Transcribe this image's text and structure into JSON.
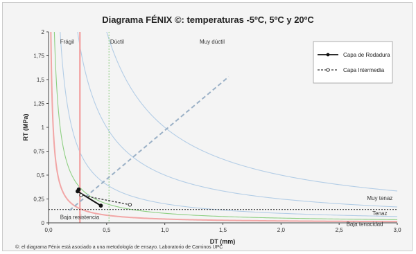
{
  "chart_data": {
    "type": "line",
    "title": "Diagrama FÉNIX ©: temperaturas -5ºC, 5ºC y 20ºC",
    "xlabel": "DT (mm)",
    "ylabel": "RT (MPa)",
    "xlim": [
      0,
      3
    ],
    "ylim": [
      0,
      2
    ],
    "x_ticks": [
      0,
      0.5,
      1,
      1.5,
      2,
      2.5,
      3
    ],
    "x_tick_labels": [
      "0,0",
      "0,5",
      "1,0",
      "1,5",
      "2,0",
      "2,5",
      "3,0"
    ],
    "y_ticks": [
      0,
      0.25,
      0.5,
      0.75,
      1,
      1.25,
      1.5,
      1.75,
      2
    ],
    "y_tick_labels": [
      "0",
      "0,25",
      "0,5",
      "0,75",
      "1",
      "1,25",
      "1,5",
      "1,75",
      "2"
    ],
    "grid": false,
    "legend_position": "top-right",
    "colors": {
      "red": "#f2a6a6",
      "green": "#8ecf82",
      "blue": "#b3cde6",
      "axis": "#444444",
      "capa_rodadura": "#111111",
      "capa_intermedia": "#333333",
      "diagonal": "#9ab0c6"
    },
    "reference_lines": {
      "vertical_red_x": 0.27,
      "vertical_green_x": 0.52,
      "horizontal_dotted_y": 0.14,
      "diagonal_dashed": [
        [
          0.18,
          0.13
        ],
        [
          1.55,
          1.53
        ]
      ]
    },
    "boundary_curves": [
      {
        "color": "red",
        "k": 0.04
      },
      {
        "color": "green",
        "k": 0.1
      },
      {
        "color": "blue",
        "k": 0.2
      },
      {
        "color": "blue",
        "k": 0.5
      },
      {
        "color": "blue",
        "k": 1.0
      }
    ],
    "series": [
      {
        "name": "Capa de Rodadura",
        "style": "solid",
        "points": [
          [
            0.26,
            0.35
          ],
          [
            0.25,
            0.33
          ],
          [
            0.45,
            0.18
          ]
        ]
      },
      {
        "name": "Capa Intermedia",
        "style": "dashed",
        "points": [
          [
            0.28,
            0.29
          ],
          [
            0.7,
            0.19
          ]
        ]
      }
    ],
    "region_labels": [
      {
        "text": "Frágil",
        "x": 0.1,
        "y": 1.9
      },
      {
        "text": "Dúctil",
        "x": 0.53,
        "y": 1.9
      },
      {
        "text": "Muy dúctil",
        "x": 1.3,
        "y": 1.9
      },
      {
        "text": "Muy tenaz",
        "x": 2.85,
        "y": 0.26
      },
      {
        "text": "Tenaz",
        "x": 2.85,
        "y": 0.1
      },
      {
        "text": "Baja tenacidad",
        "x": 2.72,
        "y": -0.01
      },
      {
        "text": "Baja resistencia",
        "x": 0.1,
        "y": 0.06
      }
    ],
    "footnote": "©: el diagrama Fénix está asociado a una metodología de ensayo. Laboratorio de Caminos UPC"
  }
}
